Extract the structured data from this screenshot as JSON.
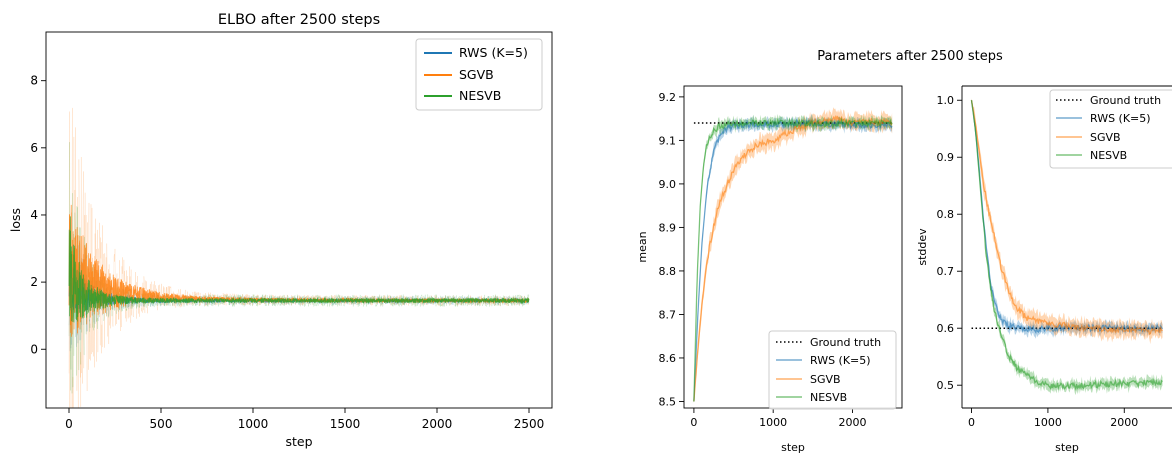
{
  "colors": {
    "rws": "#1f77b4",
    "sgvb": "#ff7f0e",
    "nesvb": "#2ca02c",
    "ground_truth": "#000000"
  },
  "chart_data": [
    {
      "type": "line",
      "title": "ELBO after 2500 steps",
      "xlabel": "step",
      "ylabel": "loss",
      "xlim": [
        -125,
        2625
      ],
      "ylim": [
        -1.75,
        9.45
      ],
      "xticks": [
        0,
        500,
        1000,
        1500,
        2000,
        2500
      ],
      "yticks": [
        0,
        2,
        4,
        6,
        8
      ],
      "legend_position": "top-right",
      "grid": false,
      "series": [
        {
          "name": "RWS (K=5)",
          "color_key": "rws",
          "x": [
            0,
            25,
            50,
            100,
            150,
            200,
            300,
            400,
            500,
            700,
            1000,
            1500,
            2000,
            2500
          ],
          "y": [
            2.0,
            1.8,
            1.7,
            1.6,
            1.55,
            1.5,
            1.48,
            1.46,
            1.45,
            1.45,
            1.45,
            1.45,
            1.45,
            1.45
          ]
        },
        {
          "name": "SGVB",
          "color_key": "sgvb",
          "x": [
            0,
            25,
            50,
            100,
            150,
            200,
            300,
            400,
            500,
            700,
            1000,
            1500,
            2000,
            2500
          ],
          "y": [
            2.3,
            2.3,
            2.1,
            1.9,
            1.8,
            1.75,
            1.65,
            1.6,
            1.55,
            1.5,
            1.47,
            1.46,
            1.45,
            1.45
          ]
        },
        {
          "name": "NESVB",
          "color_key": "nesvb",
          "x": [
            0,
            25,
            50,
            100,
            150,
            200,
            300,
            400,
            500,
            700,
            1000,
            1500,
            2000,
            2500
          ],
          "y": [
            2.6,
            2.0,
            1.7,
            1.55,
            1.5,
            1.47,
            1.46,
            1.45,
            1.45,
            1.45,
            1.45,
            1.45,
            1.45,
            1.45
          ]
        }
      ]
    },
    {
      "type": "line",
      "suptitle": "Parameters after 2500 steps",
      "xlabel": "step",
      "ylabel": "mean",
      "xlim": [
        -125,
        2625
      ],
      "ylim": [
        8.485,
        9.225
      ],
      "xticks": [
        0,
        1000,
        2000
      ],
      "yticks": [
        8.5,
        8.6,
        8.7,
        8.8,
        8.9,
        9.0,
        9.1,
        9.2
      ],
      "legend_position": "lower-right",
      "grid": false,
      "ground_truth": 9.14,
      "series": [
        {
          "name": "Ground truth",
          "color_key": "ground_truth",
          "style": "dotted",
          "x": [
            0,
            2500
          ],
          "y": [
            9.14,
            9.14
          ]
        },
        {
          "name": "RWS (K=5)",
          "color_key": "rws",
          "x": [
            0,
            50,
            100,
            150,
            200,
            250,
            300,
            400,
            500,
            700,
            1000,
            1500,
            2000,
            2500
          ],
          "y": [
            8.5,
            8.7,
            8.86,
            8.96,
            9.03,
            9.07,
            9.1,
            9.125,
            9.133,
            9.137,
            9.138,
            9.14,
            9.135,
            9.135
          ]
        },
        {
          "name": "SGVB",
          "color_key": "sgvb",
          "x": [
            0,
            50,
            100,
            150,
            200,
            300,
            400,
            500,
            600,
            800,
            1000,
            1200,
            1500,
            1800,
            2000,
            2200,
            2500
          ],
          "y": [
            8.5,
            8.62,
            8.72,
            8.8,
            8.86,
            8.94,
            8.99,
            9.03,
            9.06,
            9.09,
            9.1,
            9.12,
            9.14,
            9.15,
            9.14,
            9.145,
            9.14
          ]
        },
        {
          "name": "NESVB",
          "color_key": "nesvb",
          "x": [
            0,
            40,
            80,
            120,
            160,
            200,
            300,
            400,
            500,
            700,
            1000,
            1500,
            2000,
            2500
          ],
          "y": [
            8.5,
            8.78,
            8.95,
            9.04,
            9.09,
            9.11,
            9.13,
            9.135,
            9.138,
            9.14,
            9.14,
            9.138,
            9.14,
            9.14
          ]
        }
      ]
    },
    {
      "type": "line",
      "xlabel": "step",
      "ylabel": "stddev",
      "xlim": [
        -125,
        2625
      ],
      "ylim": [
        0.46,
        1.025
      ],
      "xticks": [
        0,
        1000,
        2000
      ],
      "yticks": [
        0.5,
        0.6,
        0.7,
        0.8,
        0.9,
        1.0
      ],
      "legend_position": "top-right",
      "grid": false,
      "ground_truth": 0.6,
      "series": [
        {
          "name": "Ground truth",
          "color_key": "ground_truth",
          "style": "dotted",
          "x": [
            0,
            2500
          ],
          "y": [
            0.6,
            0.6
          ]
        },
        {
          "name": "RWS (K=5)",
          "color_key": "rws",
          "x": [
            0,
            50,
            100,
            150,
            200,
            250,
            300,
            350,
            400,
            500,
            600,
            800,
            1000,
            1500,
            2000,
            2500
          ],
          "y": [
            1.0,
            0.95,
            0.88,
            0.8,
            0.73,
            0.68,
            0.645,
            0.625,
            0.61,
            0.605,
            0.6,
            0.598,
            0.6,
            0.6,
            0.6,
            0.6
          ]
        },
        {
          "name": "SGVB",
          "color_key": "sgvb",
          "x": [
            0,
            50,
            100,
            150,
            200,
            250,
            300,
            400,
            500,
            600,
            700,
            800,
            1000,
            1200,
            1500,
            1800,
            2000,
            2200,
            2500
          ],
          "y": [
            1.0,
            0.96,
            0.91,
            0.86,
            0.82,
            0.79,
            0.76,
            0.7,
            0.66,
            0.635,
            0.62,
            0.615,
            0.61,
            0.605,
            0.6,
            0.598,
            0.598,
            0.595,
            0.595
          ]
        },
        {
          "name": "NESVB",
          "color_key": "nesvb",
          "x": [
            0,
            50,
            100,
            150,
            200,
            250,
            300,
            400,
            500,
            600,
            800,
            1000,
            1200,
            1500,
            2000,
            2500
          ],
          "y": [
            1.0,
            0.95,
            0.87,
            0.79,
            0.72,
            0.67,
            0.63,
            0.58,
            0.55,
            0.53,
            0.51,
            0.5,
            0.498,
            0.5,
            0.503,
            0.505
          ]
        }
      ]
    }
  ]
}
